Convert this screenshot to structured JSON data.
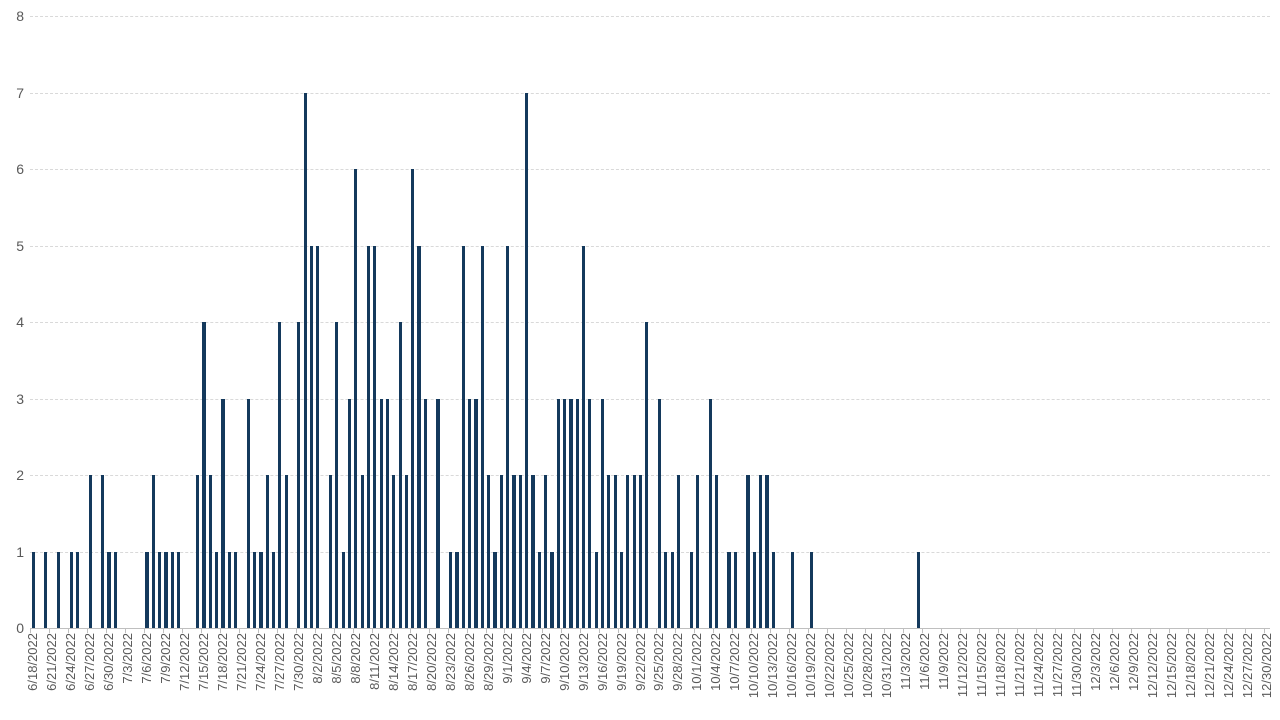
{
  "chart_data": {
    "type": "bar",
    "title": "",
    "legend": "none",
    "xlabel": "",
    "ylabel": "",
    "ylim": [
      0,
      8
    ],
    "y_ticks": [
      "0",
      "1",
      "2",
      "3",
      "4",
      "5",
      "6",
      "7",
      "8"
    ],
    "grid": "horizontal-dashed",
    "bar_color": "#14395C",
    "x_label_every_n_days": 3,
    "x_labels": [
      "6/18/2022",
      "6/21/2022",
      "6/24/2022",
      "6/27/2022",
      "6/30/2022",
      "7/3/2022",
      "7/6/2022",
      "7/9/2022",
      "7/12/2022",
      "7/15/2022",
      "7/18/2022",
      "7/21/2022",
      "7/24/2022",
      "7/27/2022",
      "7/30/2022",
      "8/2/2022",
      "8/5/2022",
      "8/8/2022",
      "8/11/2022",
      "8/14/2022",
      "8/17/2022",
      "8/20/2022",
      "8/23/2022",
      "8/26/2022",
      "8/29/2022",
      "9/1/2022",
      "9/4/2022",
      "9/7/2022",
      "9/10/2022",
      "9/13/2022",
      "9/16/2022",
      "9/19/2022",
      "9/22/2022",
      "9/25/2022",
      "9/28/2022",
      "10/1/2022",
      "10/4/2022",
      "10/7/2022",
      "10/10/2022",
      "10/13/2022",
      "10/16/2022",
      "10/19/2022",
      "10/22/2022",
      "10/25/2022",
      "10/28/2022",
      "10/31/2022",
      "11/3/2022",
      "11/6/2022",
      "11/9/2022",
      "11/12/2022",
      "11/15/2022",
      "11/18/2022",
      "11/21/2022",
      "11/24/2022",
      "11/27/2022",
      "11/30/2022",
      "12/3/2022",
      "12/6/2022",
      "12/9/2022",
      "12/12/2022",
      "12/15/2022",
      "12/18/2022",
      "12/21/2022",
      "12/24/2022",
      "12/27/2022",
      "12/30/2022"
    ],
    "dates": [
      "6/18/2022",
      "6/19/2022",
      "6/20/2022",
      "6/21/2022",
      "6/22/2022",
      "6/23/2022",
      "6/24/2022",
      "6/25/2022",
      "6/26/2022",
      "6/27/2022",
      "6/28/2022",
      "6/29/2022",
      "6/30/2022",
      "7/1/2022",
      "7/2/2022",
      "7/3/2022",
      "7/4/2022",
      "7/5/2022",
      "7/6/2022",
      "7/7/2022",
      "7/8/2022",
      "7/9/2022",
      "7/10/2022",
      "7/11/2022",
      "7/12/2022",
      "7/13/2022",
      "7/14/2022",
      "7/15/2022",
      "7/16/2022",
      "7/17/2022",
      "7/18/2022",
      "7/19/2022",
      "7/20/2022",
      "7/21/2022",
      "7/22/2022",
      "7/23/2022",
      "7/24/2022",
      "7/25/2022",
      "7/26/2022",
      "7/27/2022",
      "7/28/2022",
      "7/29/2022",
      "7/30/2022",
      "7/31/2022",
      "8/1/2022",
      "8/2/2022",
      "8/3/2022",
      "8/4/2022",
      "8/5/2022",
      "8/6/2022",
      "8/7/2022",
      "8/8/2022",
      "8/9/2022",
      "8/10/2022",
      "8/11/2022",
      "8/12/2022",
      "8/13/2022",
      "8/14/2022",
      "8/15/2022",
      "8/16/2022",
      "8/17/2022",
      "8/18/2022",
      "8/19/2022",
      "8/20/2022",
      "8/21/2022",
      "8/22/2022",
      "8/23/2022",
      "8/24/2022",
      "8/25/2022",
      "8/26/2022",
      "8/27/2022",
      "8/28/2022",
      "8/29/2022",
      "8/30/2022",
      "8/31/2022",
      "9/1/2022",
      "9/2/2022",
      "9/3/2022",
      "9/4/2022",
      "9/5/2022",
      "9/6/2022",
      "9/7/2022",
      "9/8/2022",
      "9/9/2022",
      "9/10/2022",
      "9/11/2022",
      "9/12/2022",
      "9/13/2022",
      "9/14/2022",
      "9/15/2022",
      "9/16/2022",
      "9/17/2022",
      "9/18/2022",
      "9/19/2022",
      "9/20/2022",
      "9/21/2022",
      "9/22/2022",
      "9/23/2022",
      "9/24/2022",
      "9/25/2022",
      "9/26/2022",
      "9/27/2022",
      "9/28/2022",
      "9/29/2022",
      "9/30/2022",
      "10/1/2022",
      "10/2/2022",
      "10/3/2022",
      "10/4/2022",
      "10/5/2022",
      "10/6/2022",
      "10/7/2022",
      "10/8/2022",
      "10/9/2022",
      "10/10/2022",
      "10/11/2022",
      "10/12/2022",
      "10/13/2022",
      "10/14/2022",
      "10/15/2022",
      "10/16/2022",
      "10/17/2022",
      "10/18/2022",
      "10/19/2022",
      "10/20/2022",
      "10/21/2022",
      "10/22/2022",
      "10/23/2022",
      "10/24/2022",
      "10/25/2022",
      "10/26/2022",
      "10/27/2022",
      "10/28/2022",
      "10/29/2022",
      "10/30/2022",
      "10/31/2022",
      "11/1/2022",
      "11/2/2022",
      "11/3/2022",
      "11/4/2022",
      "11/5/2022",
      "11/6/2022",
      "11/7/2022",
      "11/8/2022",
      "11/9/2022",
      "11/10/2022",
      "11/11/2022",
      "11/12/2022",
      "11/13/2022",
      "11/14/2022",
      "11/15/2022",
      "11/16/2022",
      "11/17/2022",
      "11/18/2022",
      "11/19/2022",
      "11/20/2022",
      "11/21/2022",
      "11/22/2022",
      "11/23/2022",
      "11/24/2022",
      "11/25/2022",
      "11/26/2022",
      "11/27/2022",
      "11/28/2022",
      "11/29/2022",
      "11/30/2022",
      "12/1/2022",
      "12/2/2022",
      "12/3/2022",
      "12/4/2022",
      "12/5/2022",
      "12/6/2022",
      "12/7/2022",
      "12/8/2022",
      "12/9/2022",
      "12/10/2022",
      "12/11/2022",
      "12/12/2022",
      "12/13/2022",
      "12/14/2022",
      "12/15/2022",
      "12/16/2022",
      "12/17/2022",
      "12/18/2022",
      "12/19/2022",
      "12/20/2022",
      "12/21/2022",
      "12/22/2022",
      "12/23/2022",
      "12/24/2022",
      "12/25/2022",
      "12/26/2022",
      "12/27/2022",
      "12/28/2022",
      "12/29/2022",
      "12/30/2022"
    ],
    "values": [
      1,
      0,
      1,
      0,
      1,
      0,
      1,
      1,
      0,
      2,
      0,
      2,
      1,
      1,
      0,
      0,
      0,
      0,
      1,
      2,
      1,
      1,
      1,
      1,
      0,
      0,
      2,
      4,
      2,
      1,
      3,
      1,
      1,
      0,
      3,
      1,
      1,
      2,
      1,
      4,
      2,
      0,
      4,
      7,
      5,
      5,
      0,
      2,
      4,
      1,
      3,
      6,
      2,
      5,
      5,
      3,
      3,
      2,
      4,
      2,
      6,
      5,
      3,
      0,
      3,
      0,
      1,
      1,
      5,
      3,
      3,
      5,
      2,
      1,
      2,
      5,
      2,
      2,
      7,
      2,
      1,
      2,
      1,
      3,
      3,
      3,
      3,
      5,
      3,
      1,
      3,
      2,
      2,
      1,
      2,
      2,
      2,
      4,
      0,
      3,
      1,
      1,
      2,
      0,
      1,
      2,
      0,
      3,
      2,
      0,
      1,
      1,
      0,
      2,
      1,
      2,
      2,
      1,
      0,
      0,
      1,
      0,
      0,
      1,
      0,
      0,
      0,
      0,
      0,
      0,
      0,
      0,
      0,
      0,
      0,
      0,
      0,
      0,
      0,
      0,
      1,
      0,
      0,
      0,
      0,
      0,
      0,
      0,
      0,
      0,
      0,
      0,
      0,
      0,
      0,
      0,
      0,
      0,
      0,
      0,
      0,
      0,
      0,
      0,
      0,
      0,
      0,
      0,
      0,
      0,
      0,
      0,
      0,
      0,
      0,
      0,
      0,
      0,
      0,
      0,
      0,
      0,
      0,
      0,
      0,
      0,
      0,
      0,
      0,
      0,
      0,
      0,
      0,
      0,
      0,
      0
    ]
  },
  "colors": {
    "background": "#FFFFFF",
    "bar": "#14395C",
    "gridline": "#D9D9D9",
    "axis_line": "#BFBFBF",
    "axis_text": "#595959"
  }
}
